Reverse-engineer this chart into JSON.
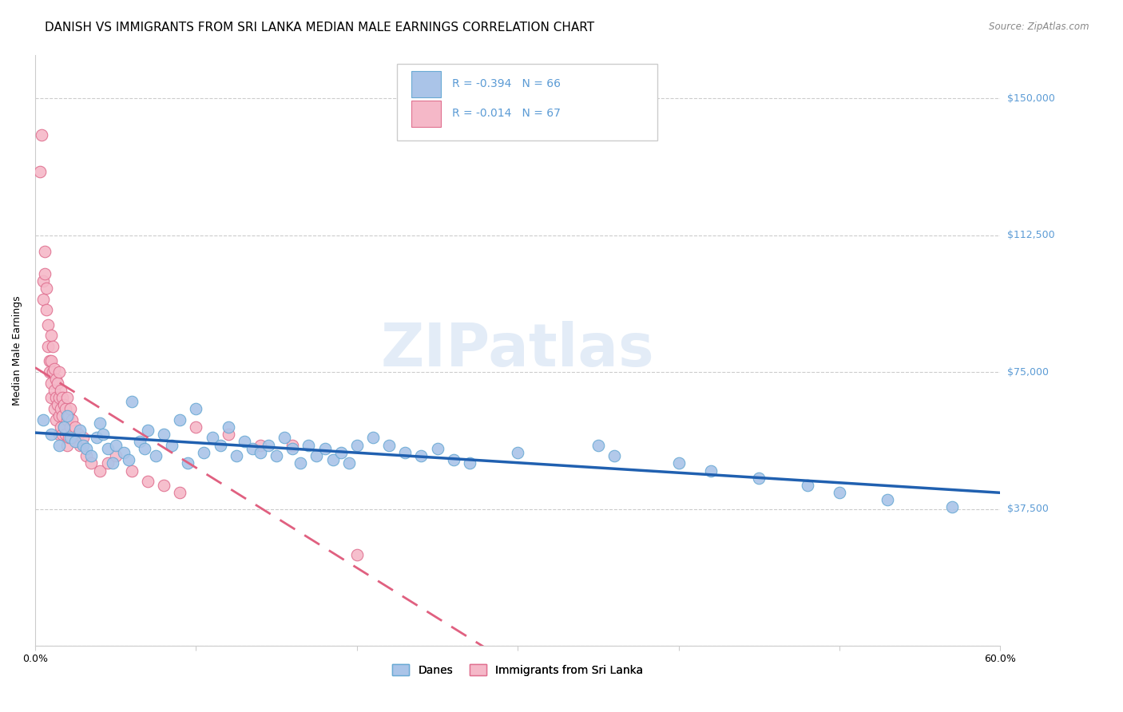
{
  "title": "DANISH VS IMMIGRANTS FROM SRI LANKA MEDIAN MALE EARNINGS CORRELATION CHART",
  "source": "Source: ZipAtlas.com",
  "ylabel": "Median Male Earnings",
  "watermark": "ZIPatlas",
  "xlim": [
    0.0,
    0.6
  ],
  "ylim": [
    0,
    162000
  ],
  "yticks": [
    0,
    37500,
    75000,
    112500,
    150000
  ],
  "xticks": [
    0.0,
    0.1,
    0.2,
    0.3,
    0.4,
    0.5,
    0.6
  ],
  "ytick_labels": [
    "",
    "$37,500",
    "$75,000",
    "$112,500",
    "$150,000"
  ],
  "danes_color": "#aac4e8",
  "danes_edge_color": "#6aaad4",
  "immigrants_color": "#f5b8c8",
  "immigrants_edge_color": "#e07090",
  "trend_danes_color": "#2060b0",
  "trend_immigrants_color": "#e06080",
  "danes_R": -0.394,
  "danes_N": 66,
  "immigrants_R": -0.014,
  "immigrants_N": 67,
  "background_color": "#ffffff",
  "grid_color": "#cccccc",
  "axis_color": "#cccccc",
  "right_label_color": "#5b9bd5",
  "title_fontsize": 11,
  "label_fontsize": 9,
  "tick_fontsize": 9,
  "danes_x": [
    0.005,
    0.01,
    0.015,
    0.018,
    0.02,
    0.022,
    0.025,
    0.028,
    0.03,
    0.032,
    0.035,
    0.038,
    0.04,
    0.042,
    0.045,
    0.048,
    0.05,
    0.055,
    0.058,
    0.06,
    0.065,
    0.068,
    0.07,
    0.075,
    0.08,
    0.085,
    0.09,
    0.095,
    0.1,
    0.105,
    0.11,
    0.115,
    0.12,
    0.125,
    0.13,
    0.135,
    0.14,
    0.145,
    0.15,
    0.155,
    0.16,
    0.165,
    0.17,
    0.175,
    0.18,
    0.185,
    0.19,
    0.195,
    0.2,
    0.21,
    0.22,
    0.23,
    0.24,
    0.25,
    0.26,
    0.27,
    0.3,
    0.35,
    0.36,
    0.4,
    0.42,
    0.45,
    0.48,
    0.5,
    0.53,
    0.57
  ],
  "danes_y": [
    62000,
    58000,
    55000,
    60000,
    63000,
    57000,
    56000,
    59000,
    55000,
    54000,
    52000,
    57000,
    61000,
    58000,
    54000,
    50000,
    55000,
    53000,
    51000,
    67000,
    56000,
    54000,
    59000,
    52000,
    58000,
    55000,
    62000,
    50000,
    65000,
    53000,
    57000,
    55000,
    60000,
    52000,
    56000,
    54000,
    53000,
    55000,
    52000,
    57000,
    54000,
    50000,
    55000,
    52000,
    54000,
    51000,
    53000,
    50000,
    55000,
    57000,
    55000,
    53000,
    52000,
    54000,
    51000,
    50000,
    53000,
    55000,
    52000,
    50000,
    48000,
    46000,
    44000,
    42000,
    40000,
    38000
  ],
  "immigrants_x": [
    0.003,
    0.004,
    0.005,
    0.005,
    0.006,
    0.006,
    0.007,
    0.007,
    0.008,
    0.008,
    0.009,
    0.009,
    0.01,
    0.01,
    0.01,
    0.01,
    0.011,
    0.011,
    0.012,
    0.012,
    0.012,
    0.013,
    0.013,
    0.013,
    0.014,
    0.014,
    0.015,
    0.015,
    0.015,
    0.015,
    0.016,
    0.016,
    0.016,
    0.017,
    0.017,
    0.017,
    0.018,
    0.018,
    0.019,
    0.019,
    0.02,
    0.02,
    0.02,
    0.021,
    0.021,
    0.022,
    0.022,
    0.023,
    0.023,
    0.025,
    0.027,
    0.028,
    0.03,
    0.032,
    0.035,
    0.04,
    0.045,
    0.05,
    0.06,
    0.07,
    0.08,
    0.09,
    0.1,
    0.12,
    0.14,
    0.16,
    0.2
  ],
  "immigrants_y": [
    130000,
    140000,
    100000,
    95000,
    108000,
    102000,
    98000,
    92000,
    88000,
    82000,
    78000,
    75000,
    85000,
    78000,
    72000,
    68000,
    82000,
    75000,
    76000,
    70000,
    65000,
    73000,
    68000,
    62000,
    72000,
    66000,
    75000,
    68000,
    63000,
    58000,
    70000,
    65000,
    60000,
    68000,
    63000,
    58000,
    66000,
    60000,
    65000,
    58000,
    68000,
    62000,
    55000,
    63000,
    57000,
    65000,
    60000,
    62000,
    57000,
    60000,
    58000,
    55000,
    57000,
    52000,
    50000,
    48000,
    50000,
    52000,
    48000,
    45000,
    44000,
    42000,
    60000,
    58000,
    55000,
    55000,
    25000
  ]
}
